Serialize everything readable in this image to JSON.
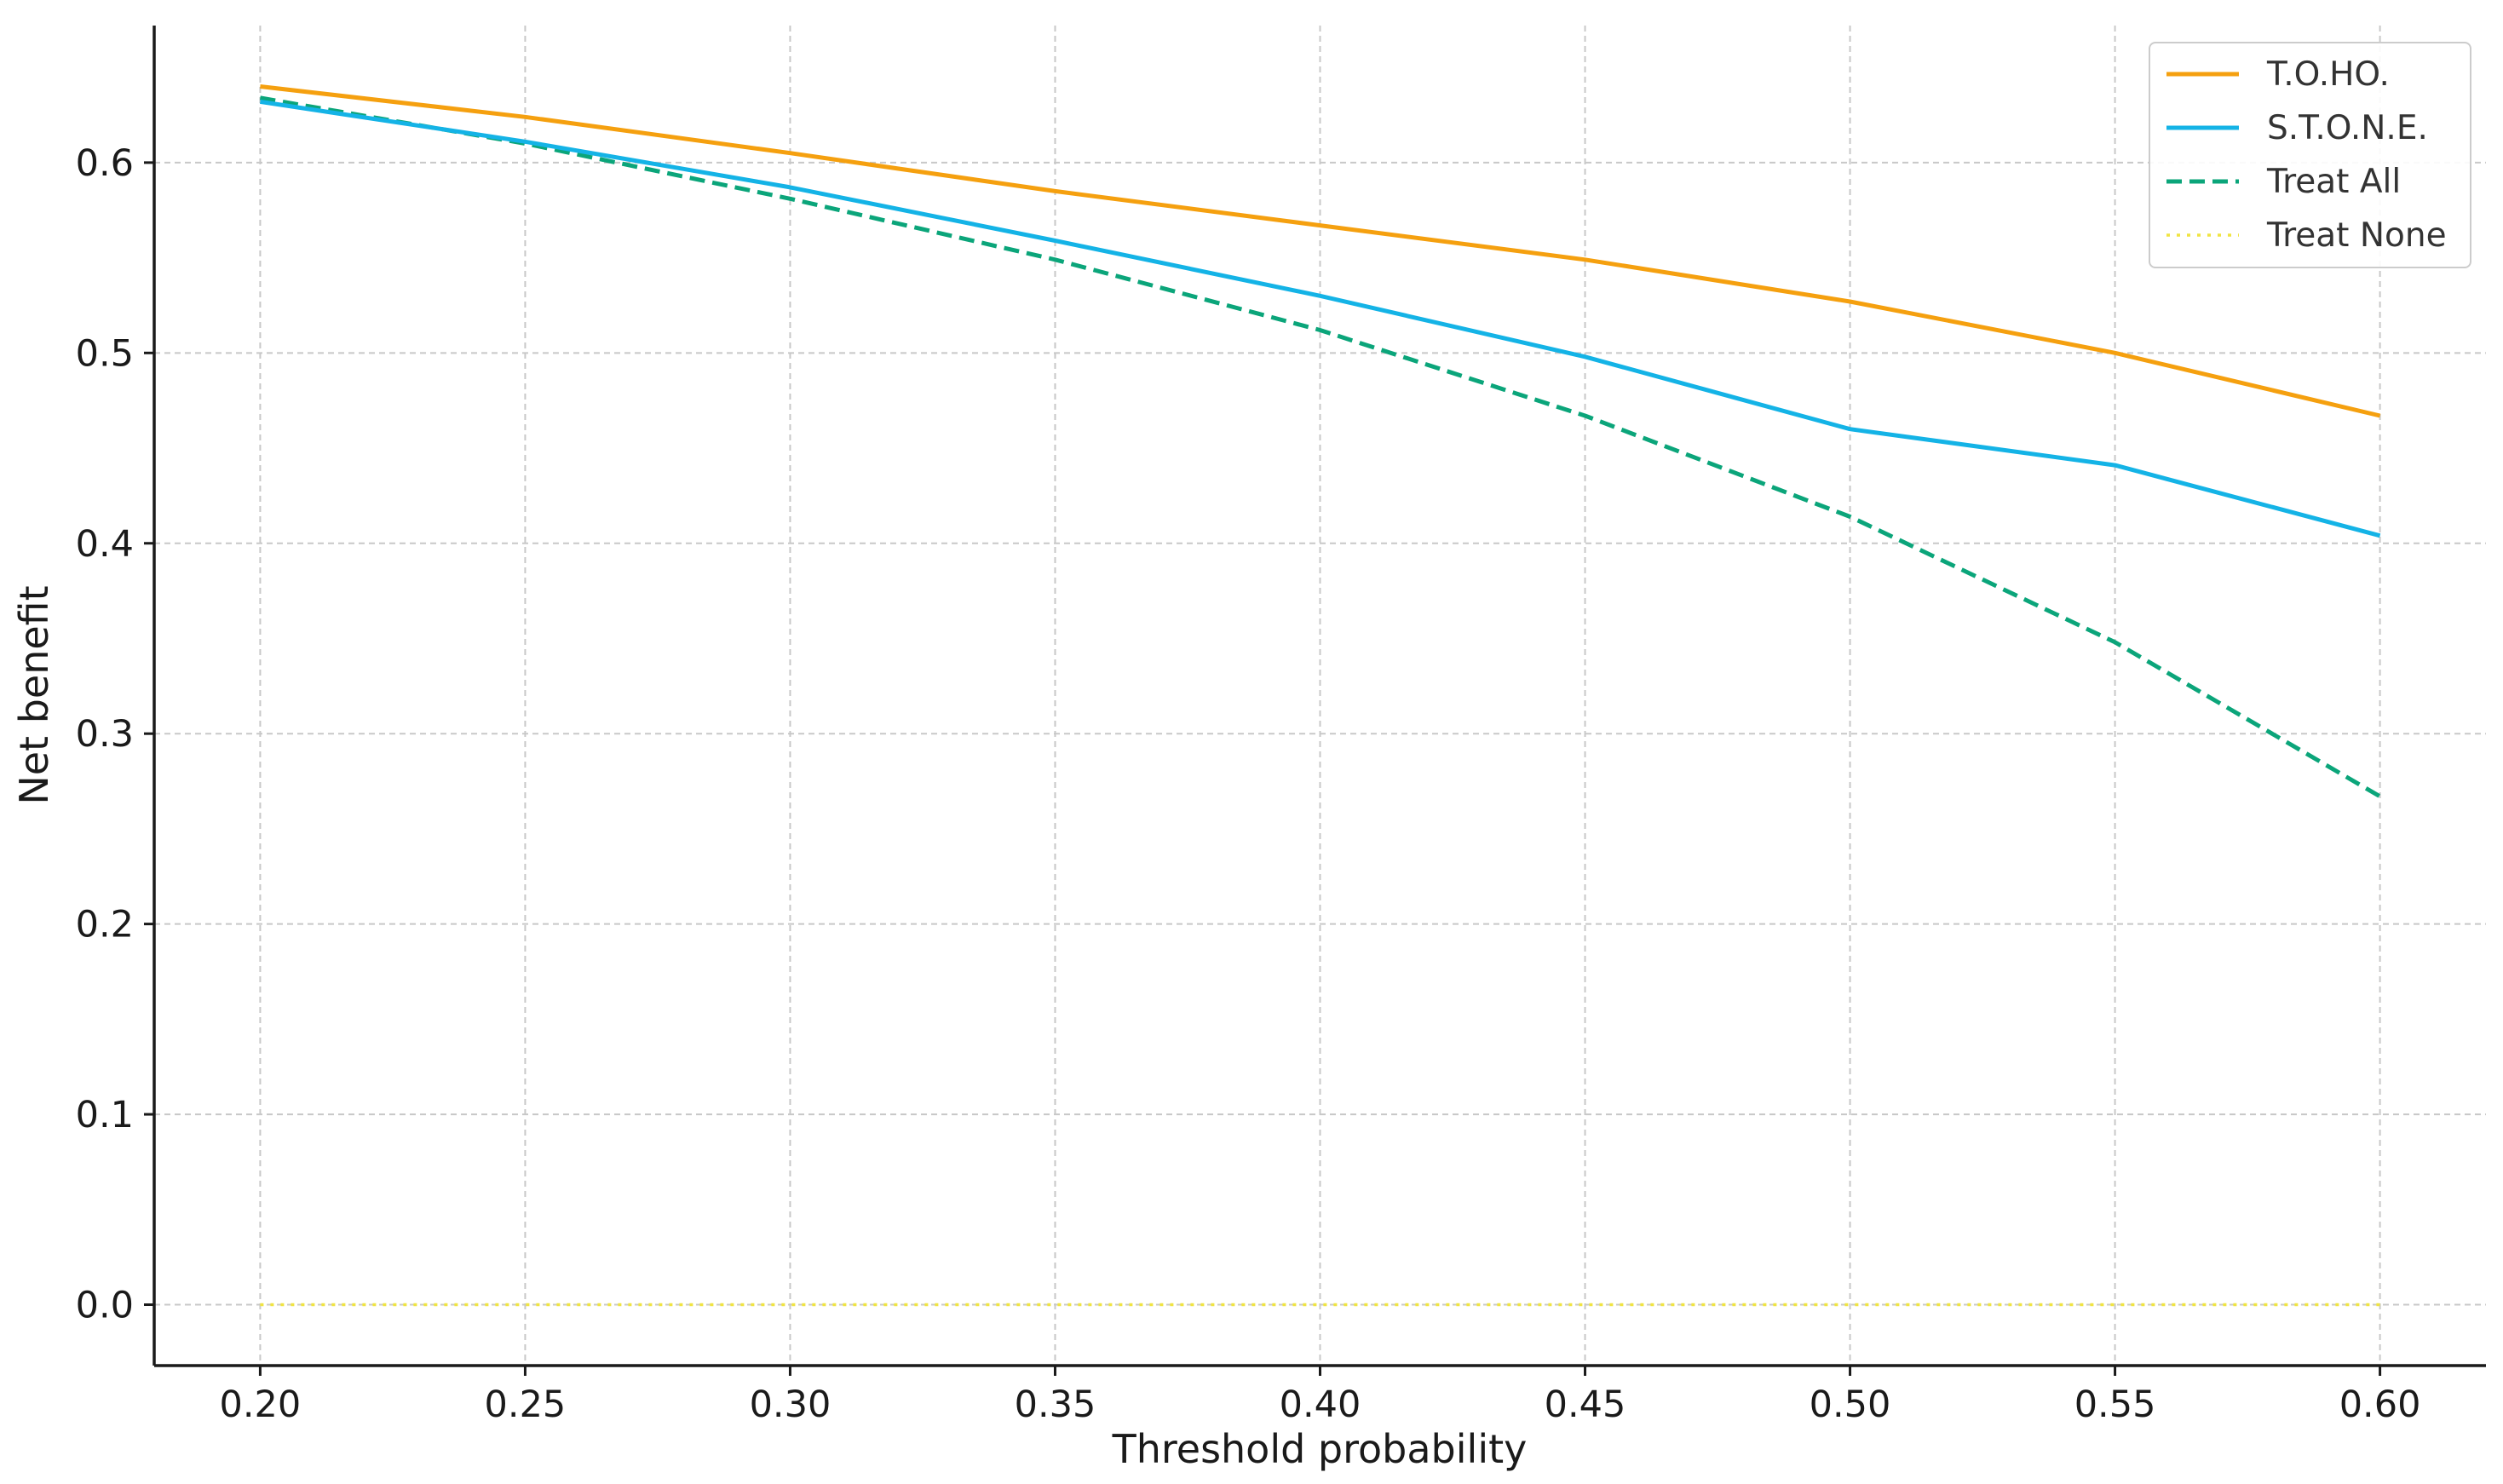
{
  "chart_data": {
    "type": "line",
    "title": "",
    "xlabel": "Threshold probability",
    "ylabel": "Net benefit",
    "xlim": [
      0.18,
      0.62
    ],
    "ylim": [
      -0.032,
      0.672
    ],
    "xticks": [
      0.2,
      0.25,
      0.3,
      0.35,
      0.4,
      0.45,
      0.5,
      0.55,
      0.6
    ],
    "xtick_labels": [
      "0.20",
      "0.25",
      "0.30",
      "0.35",
      "0.40",
      "0.45",
      "0.50",
      "0.55",
      "0.60"
    ],
    "yticks": [
      0.0,
      0.1,
      0.2,
      0.3,
      0.4,
      0.5,
      0.6
    ],
    "ytick_labels": [
      "0.0",
      "0.1",
      "0.2",
      "0.3",
      "0.4",
      "0.5",
      "0.6"
    ],
    "grid": true,
    "legend_position": "top-right",
    "x": [
      0.2,
      0.25,
      0.3,
      0.35,
      0.4,
      0.45,
      0.5,
      0.55,
      0.6
    ],
    "series": [
      {
        "name": "T.O.HO.",
        "color": "#F5A00F",
        "style": "solid",
        "values": [
          0.64,
          0.624,
          0.605,
          0.585,
          0.567,
          0.549,
          0.527,
          0.5,
          0.467
        ]
      },
      {
        "name": "S.T.O.N.E.",
        "color": "#14B3E6",
        "style": "solid",
        "values": [
          0.632,
          0.611,
          0.587,
          0.559,
          0.53,
          0.498,
          0.46,
          0.441,
          0.404
        ]
      },
      {
        "name": "Treat All",
        "color": "#0BA57A",
        "style": "dashed",
        "values": [
          0.634,
          0.61,
          0.581,
          0.549,
          0.512,
          0.467,
          0.414,
          0.348,
          0.267
        ]
      },
      {
        "name": "Treat None",
        "color": "#F0E442",
        "style": "dotted",
        "values": [
          0,
          0,
          0,
          0,
          0,
          0,
          0,
          0,
          0
        ]
      }
    ]
  }
}
